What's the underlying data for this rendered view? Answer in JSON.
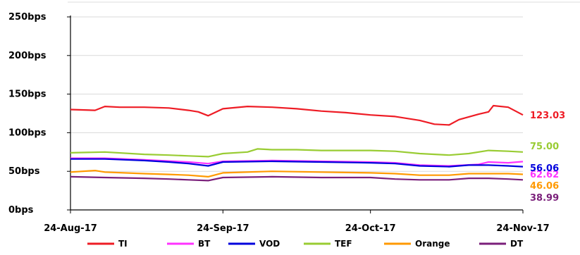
{
  "colors": {
    "TI": "#ee1c25",
    "BT": "#ff33ff",
    "VOD": "#0000dd",
    "TEF": "#99cc33",
    "Orange": "#ff9900",
    "DT": "#7a1f7a",
    "grid": "#d9d9d9",
    "axis": "#000000"
  },
  "chart_data": {
    "type": "line",
    "title": "",
    "xlabel": "",
    "ylabel": "",
    "ylim": [
      0,
      250
    ],
    "yticks": [
      {
        "value": 0,
        "label": "0bps"
      },
      {
        "value": 50,
        "label": "50bps"
      },
      {
        "value": 100,
        "label": "100bps"
      },
      {
        "value": 150,
        "label": "150bps"
      },
      {
        "value": 200,
        "label": "200bps"
      },
      {
        "value": 250,
        "label": "250bps"
      }
    ],
    "xlim": [
      "2017-08-24",
      "2017-11-24"
    ],
    "xticks": [
      {
        "value": "2017-08-24",
        "label": "24-Aug-17"
      },
      {
        "value": "2017-09-24",
        "label": "24-Sep-17"
      },
      {
        "value": "2017-10-24",
        "label": "24-Oct-17"
      },
      {
        "value": "2017-11-24",
        "label": "24-Nov-17"
      }
    ],
    "grid": "horizontal",
    "legend": "bottom",
    "series": [
      {
        "name": "TI",
        "end_label": "123.03",
        "x": [
          "2017-08-24",
          "2017-08-29",
          "2017-08-31",
          "2017-09-03",
          "2017-09-08",
          "2017-09-13",
          "2017-09-17",
          "2017-09-19",
          "2017-09-21",
          "2017-09-24",
          "2017-09-29",
          "2017-10-04",
          "2017-10-09",
          "2017-10-14",
          "2017-10-19",
          "2017-10-24",
          "2017-10-29",
          "2017-11-03",
          "2017-11-06",
          "2017-11-09",
          "2017-11-11",
          "2017-11-15",
          "2017-11-17",
          "2017-11-18",
          "2017-11-21",
          "2017-11-24"
        ],
        "values": [
          130,
          129,
          134,
          133,
          133,
          132,
          129,
          127,
          122,
          131,
          134,
          133,
          131,
          128,
          126,
          123,
          121,
          116,
          111,
          110,
          117,
          124,
          127,
          135,
          133,
          123.03
        ]
      },
      {
        "name": "BT",
        "end_label": "62.62",
        "x": [
          "2017-08-24",
          "2017-08-31",
          "2017-09-08",
          "2017-09-17",
          "2017-09-21",
          "2017-09-24",
          "2017-10-04",
          "2017-10-14",
          "2017-10-24",
          "2017-10-29",
          "2017-11-03",
          "2017-11-09",
          "2017-11-15",
          "2017-11-17",
          "2017-11-21",
          "2017-11-24"
        ],
        "values": [
          67,
          67,
          65,
          62,
          60,
          63,
          64,
          63,
          62,
          61,
          58,
          57,
          59,
          62,
          61,
          62.62
        ]
      },
      {
        "name": "VOD",
        "end_label": "56.06",
        "x": [
          "2017-08-24",
          "2017-08-31",
          "2017-09-08",
          "2017-09-13",
          "2017-09-17",
          "2017-09-21",
          "2017-09-24",
          "2017-10-04",
          "2017-10-14",
          "2017-10-24",
          "2017-10-29",
          "2017-11-03",
          "2017-11-09",
          "2017-11-13",
          "2017-11-17",
          "2017-11-21",
          "2017-11-24"
        ],
        "values": [
          66,
          66,
          64,
          62,
          60,
          57,
          62,
          63,
          62,
          61,
          60,
          57,
          56,
          58,
          58,
          57,
          56.06
        ]
      },
      {
        "name": "TEF",
        "end_label": "75.00",
        "x": [
          "2017-08-24",
          "2017-08-31",
          "2017-09-08",
          "2017-09-13",
          "2017-09-17",
          "2017-09-21",
          "2017-09-24",
          "2017-09-29",
          "2017-10-01",
          "2017-10-04",
          "2017-10-09",
          "2017-10-14",
          "2017-10-24",
          "2017-10-29",
          "2017-11-03",
          "2017-11-09",
          "2017-11-13",
          "2017-11-17",
          "2017-11-21",
          "2017-11-24"
        ],
        "values": [
          74,
          75,
          72,
          71,
          70,
          69,
          73,
          75,
          79,
          78,
          78,
          77,
          77,
          76,
          73,
          71,
          73,
          77,
          76,
          75.0
        ]
      },
      {
        "name": "Orange",
        "end_label": "46.06",
        "x": [
          "2017-08-24",
          "2017-08-29",
          "2017-08-31",
          "2017-09-08",
          "2017-09-13",
          "2017-09-17",
          "2017-09-21",
          "2017-09-24",
          "2017-10-04",
          "2017-10-14",
          "2017-10-24",
          "2017-10-29",
          "2017-11-03",
          "2017-11-09",
          "2017-11-13",
          "2017-11-17",
          "2017-11-21",
          "2017-11-24"
        ],
        "values": [
          49,
          51,
          49,
          47,
          46,
          45,
          43,
          48,
          50,
          49,
          48,
          47,
          45,
          45,
          47,
          47,
          47,
          46.06
        ]
      },
      {
        "name": "DT",
        "end_label": "38.99",
        "x": [
          "2017-08-24",
          "2017-08-31",
          "2017-09-08",
          "2017-09-13",
          "2017-09-17",
          "2017-09-21",
          "2017-09-24",
          "2017-10-04",
          "2017-10-14",
          "2017-10-24",
          "2017-10-29",
          "2017-11-03",
          "2017-11-09",
          "2017-11-13",
          "2017-11-17",
          "2017-11-21",
          "2017-11-24"
        ],
        "values": [
          43,
          42,
          41,
          40,
          39,
          38,
          42,
          43,
          42,
          42,
          40,
          39,
          39,
          41,
          41,
          40,
          38.99
        ]
      }
    ]
  }
}
